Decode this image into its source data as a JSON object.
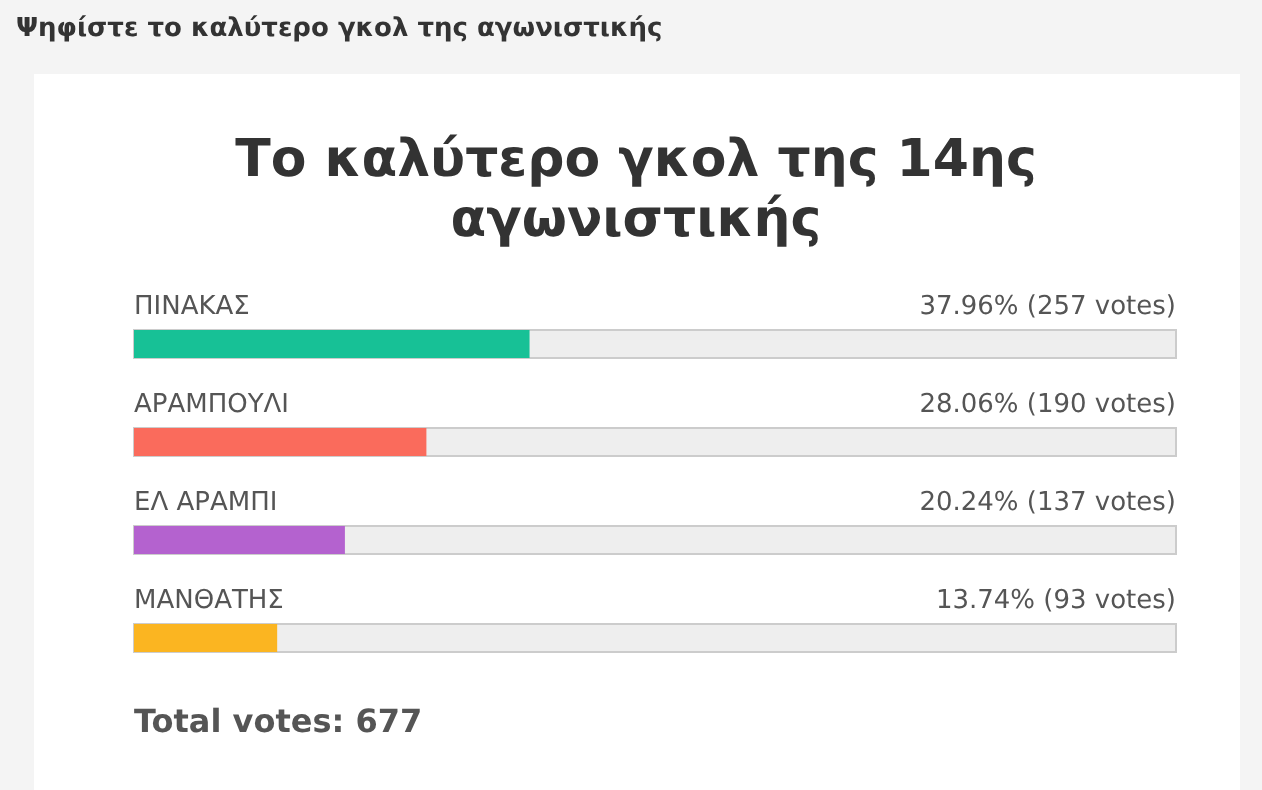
{
  "chart_data": {
    "type": "bar",
    "orientation": "horizontal",
    "title": "Το καλύτερο γκολ της 14ης αγωνιστικής",
    "categories": [
      "ΠΙΝΑΚΑΣ",
      "ΑΡΑΜΠΟΥΛΙ",
      "ΕΛ ΑΡΑΜΠΙ",
      "ΜΑΝΘΑΤΗΣ"
    ],
    "values": [
      37.96,
      28.06,
      20.24,
      13.74
    ],
    "colors": [
      "#17c196",
      "#fa6b5c",
      "#b462cf",
      "#fbb521"
    ],
    "value_labels": [
      "37.96% (257 votes)",
      "28.06% (190 votes)",
      "20.24% (137 votes)",
      "13.74% (93 votes)"
    ],
    "xlim": [
      0,
      100
    ],
    "annotations": [
      "Ψηφίστε το καλύτερο γκολ της αγωνιστικής",
      "Total votes: 677"
    ]
  }
}
